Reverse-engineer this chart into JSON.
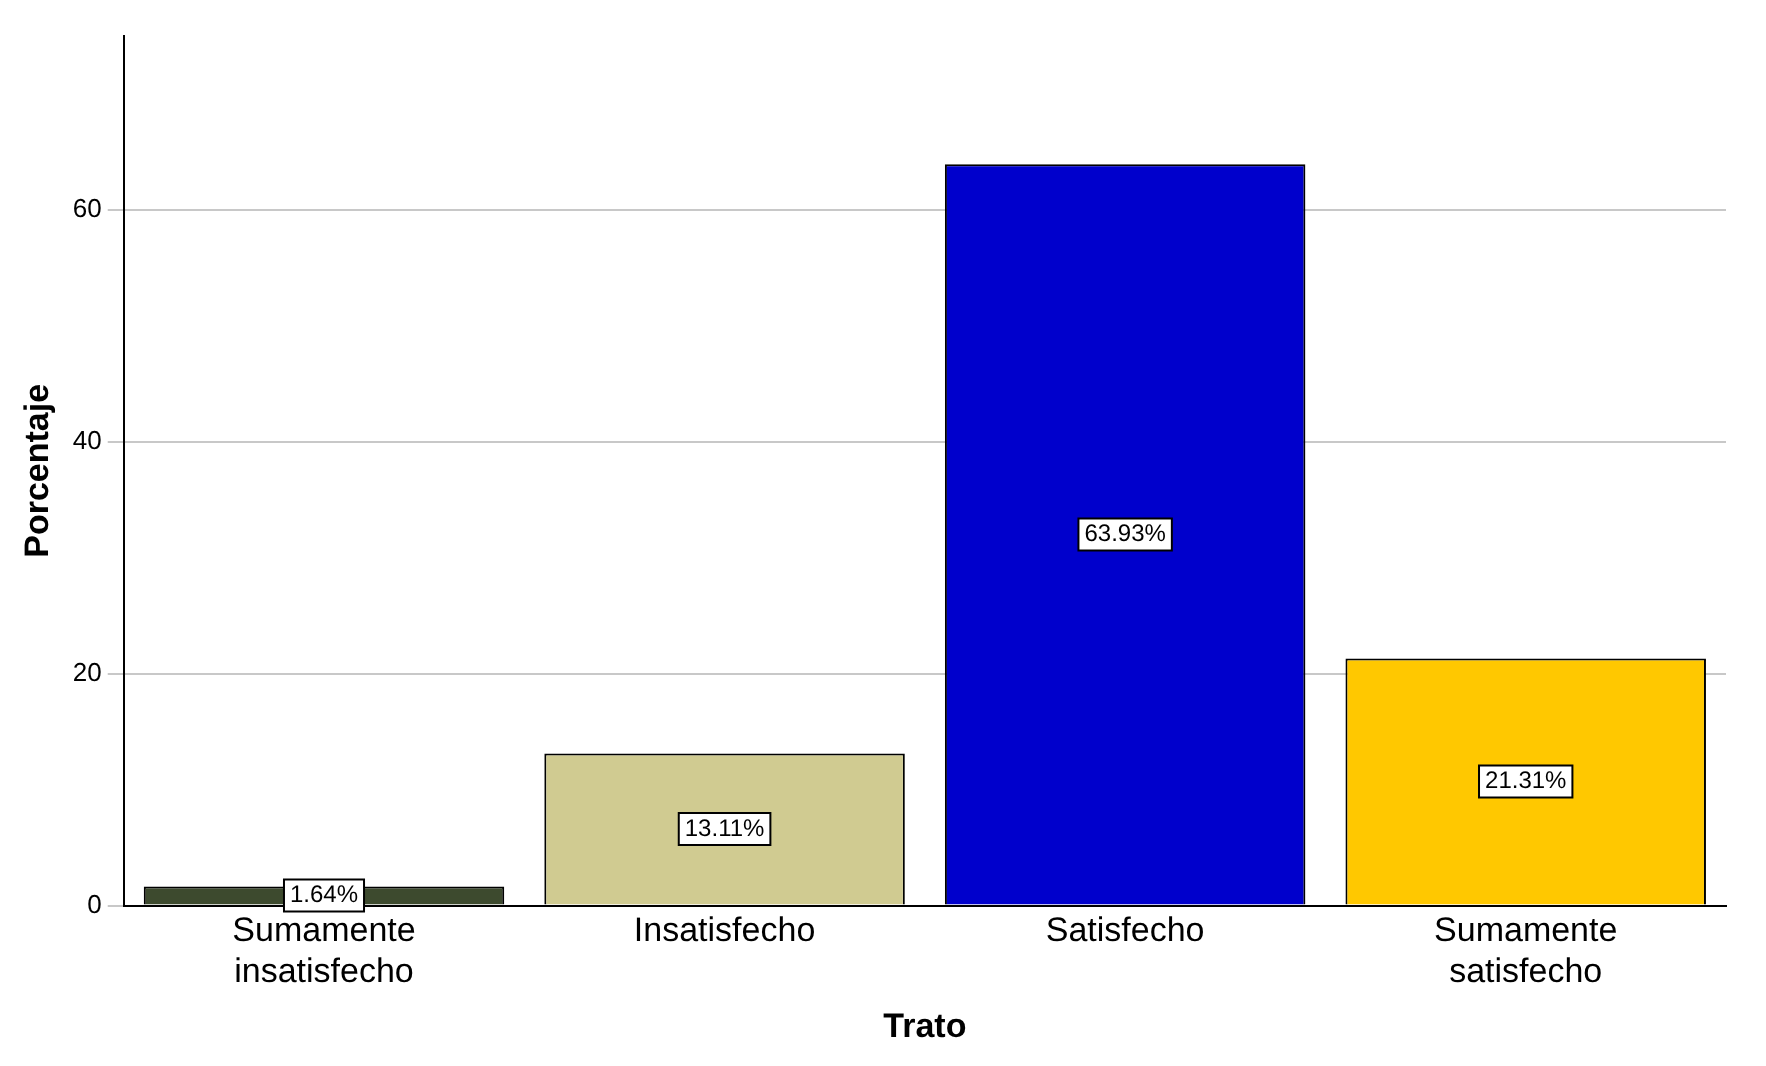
{
  "chart_data": {
    "type": "bar",
    "xlabel": "Trato",
    "ylabel": "Porcentaje",
    "categories": [
      "Sumamente insatisfecho",
      "Insatisfecho",
      "Satisfecho",
      "Sumamente satisfecho"
    ],
    "values": [
      1.64,
      13.11,
      63.93,
      21.31
    ],
    "colors": [
      "#3d4a2e",
      "#d0cb91",
      "#0000cc",
      "#ffc800"
    ],
    "value_labels": [
      "1.64%",
      "13.11%",
      "63.93%",
      "21.31%"
    ],
    "ylim": [
      0,
      75
    ],
    "yticks": [
      0,
      20,
      40,
      60
    ],
    "grid": "y",
    "legend": false
  }
}
